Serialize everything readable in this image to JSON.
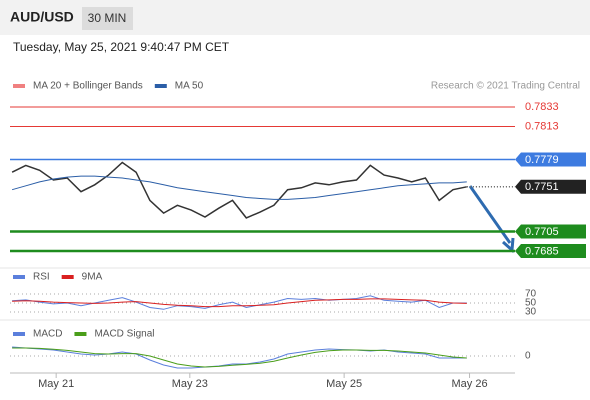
{
  "header": {
    "symbol": "AUD/USD",
    "timeframe": "30 MIN",
    "timestamp": "Tuesday, May 25, 2021 9:40:47 PM CET",
    "credit": "Research © 2021 Trading Central"
  },
  "chart_data": [
    {
      "type": "line",
      "bands": {
        "name": "MA 20 + Bollinger Bands",
        "color": "#f08080"
      },
      "series": [
        {
          "color": "#333333",
          "values": [
            0.7766,
            0.7773,
            0.7768,
            0.7758,
            0.776,
            0.7746,
            0.7753,
            0.7763,
            0.7776,
            0.7766,
            0.7737,
            0.7724,
            0.7732,
            0.7727,
            0.772,
            0.7729,
            0.7737,
            0.7719,
            0.7725,
            0.7732,
            0.7748,
            0.775,
            0.7755,
            0.7753,
            0.7756,
            0.7758,
            0.7773,
            0.7763,
            0.776,
            0.7756,
            0.776,
            0.7737,
            0.7748,
            0.7751
          ]
        },
        {
          "name": "MA 50",
          "color": "#2b5ea7",
          "values": [
            0.7748,
            0.7752,
            0.7756,
            0.7759,
            0.7761,
            0.7762,
            0.7762,
            0.7761,
            0.776,
            0.7758,
            0.7756,
            0.7753,
            0.775,
            0.7748,
            0.7746,
            0.7744,
            0.7742,
            0.774,
            0.7739,
            0.7738,
            0.7738,
            0.7739,
            0.774,
            0.7742,
            0.7744,
            0.7746,
            0.7748,
            0.775,
            0.7752,
            0.7753,
            0.7754,
            0.7755,
            0.7755,
            0.7756
          ]
        }
      ],
      "levels": [
        {
          "value": 0.7833,
          "color": "#e53935",
          "box": false
        },
        {
          "value": 0.7813,
          "color": "#e53935",
          "box": false
        },
        {
          "value": 0.7779,
          "color": "#3d7be0",
          "box": true
        },
        {
          "value": 0.7751,
          "color": "#222222",
          "box": true
        },
        {
          "value": 0.7705,
          "color": "#1e8c1e",
          "box": true
        },
        {
          "value": 0.7685,
          "color": "#1e8c1e",
          "box": true
        }
      ],
      "ylim": [
        0.76737,
        0.78659
      ],
      "xlim": [
        -0.15,
        36.5
      ],
      "xticks": [
        {
          "value": 3.2,
          "label": "May 21"
        },
        {
          "value": 12.9,
          "label": "May 23"
        },
        {
          "value": 24.1,
          "label": "May 25"
        },
        {
          "value": 33.2,
          "label": "May 26"
        }
      ]
    },
    {
      "type": "line",
      "series": [
        {
          "name": "RSI",
          "color": "#5b7fdc",
          "values": [
            55,
            57,
            52,
            48,
            50,
            44,
            50,
            56,
            62,
            52,
            40,
            36,
            44,
            42,
            38,
            46,
            52,
            40,
            46,
            52,
            60,
            58,
            60,
            56,
            58,
            60,
            66,
            56,
            54,
            52,
            56,
            40,
            50,
            50
          ]
        },
        {
          "name": "9MA",
          "color": "#d92020",
          "values": [
            54,
            55,
            54,
            52,
            51,
            50,
            49,
            50,
            52,
            53,
            50,
            47,
            45,
            44,
            42,
            42,
            44,
            44,
            45,
            46,
            50,
            53,
            56,
            57,
            58,
            58,
            59,
            59,
            58,
            57,
            56,
            52,
            50,
            49
          ]
        }
      ],
      "ylim": [
        0,
        100
      ],
      "yticks": [
        30,
        50,
        70
      ]
    },
    {
      "type": "line",
      "series": [
        {
          "name": "MACD",
          "color": "#5b7fdc",
          "values": [
            0.00045,
            0.0004,
            0.00035,
            0.0003,
            0.0002,
            0.0001,
            5e-05,
            0.0001,
            0.0002,
            0.0001,
            -0.0002,
            -0.00045,
            -0.0006,
            -0.0006,
            -0.00055,
            -0.0005,
            -0.0004,
            -0.0004,
            -0.0003,
            -0.00015,
            0.0001,
            0.0002,
            0.0003,
            0.00035,
            0.00032,
            0.0003,
            0.00025,
            0.0003,
            0.0002,
            0.00015,
            0.0001,
            -0.0001,
            -0.0001,
            -0.0001
          ]
        },
        {
          "name": "MACD Signal",
          "color": "#4a9e1a",
          "values": [
            0.0004,
            0.0004,
            0.00038,
            0.00034,
            0.00028,
            0.0002,
            0.00012,
            0.0001,
            0.00012,
            0.00012,
            0.0,
            -0.0002,
            -0.0004,
            -0.0005,
            -0.00055,
            -0.00052,
            -0.00046,
            -0.00042,
            -0.00036,
            -0.00026,
            -0.0001,
            5e-05,
            0.00018,
            0.00026,
            0.0003,
            0.0003,
            0.00028,
            0.00028,
            0.00025,
            0.0002,
            0.00015,
            5e-05,
            -5e-05,
            -0.0001
          ]
        }
      ],
      "ylim": [
        -0.0008,
        0.0008
      ],
      "yticks": [
        0
      ]
    }
  ]
}
